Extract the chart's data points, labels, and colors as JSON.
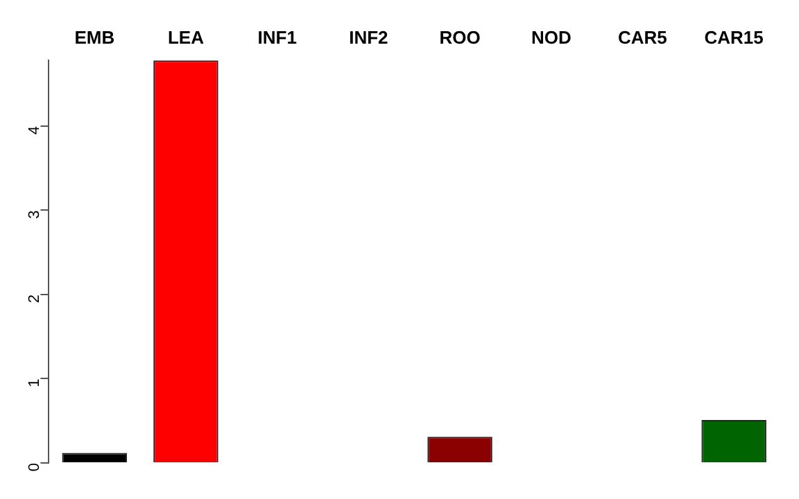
{
  "chart_data": {
    "type": "bar",
    "categories": [
      "EMB",
      "LEA",
      "INF1",
      "INF2",
      "ROO",
      "NOD",
      "CAR5",
      "CAR15"
    ],
    "values": [
      0.12,
      4.78,
      0,
      0,
      0.31,
      0,
      0,
      0.51
    ],
    "colors": [
      "#000000",
      "#ff0000",
      "#000000",
      "#000000",
      "#8b0000",
      "#000000",
      "#000000",
      "#006400"
    ],
    "ylim": [
      0,
      4.78
    ],
    "yticks": [
      0,
      1,
      2,
      3,
      4
    ],
    "grid": false,
    "legend": false
  }
}
